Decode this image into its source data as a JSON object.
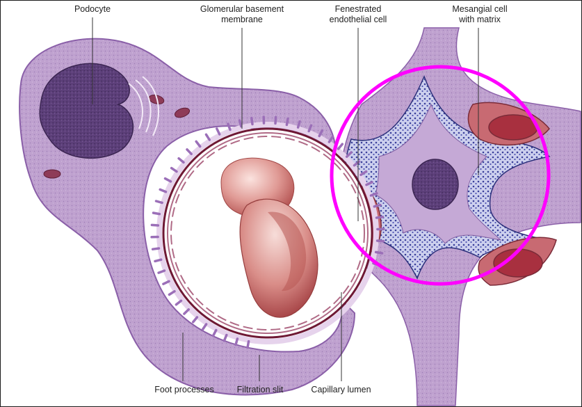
{
  "colors": {
    "cytoplasm": "#b89ac9",
    "cytoplasm_light": "#d8c6e3",
    "nucleus": "#5a3d78",
    "membrane": "#7a1e3c",
    "rbc": "#c0585a",
    "endothelial": "#b8606a",
    "matrix": "#3a3f9a",
    "highlight": "#ff00ff"
  },
  "labels": {
    "podocyte": "Podocyte",
    "gbm": "Glomerular basement\nmembrane",
    "fenestrated": "Fenestrated\nendothelial cell",
    "mesangial": "Mesangial cell\nwith matrix",
    "foot_processes": "Foot processes",
    "filtration_slit": "Filtration slit",
    "capillary_lumen": "Capillary lumen"
  }
}
